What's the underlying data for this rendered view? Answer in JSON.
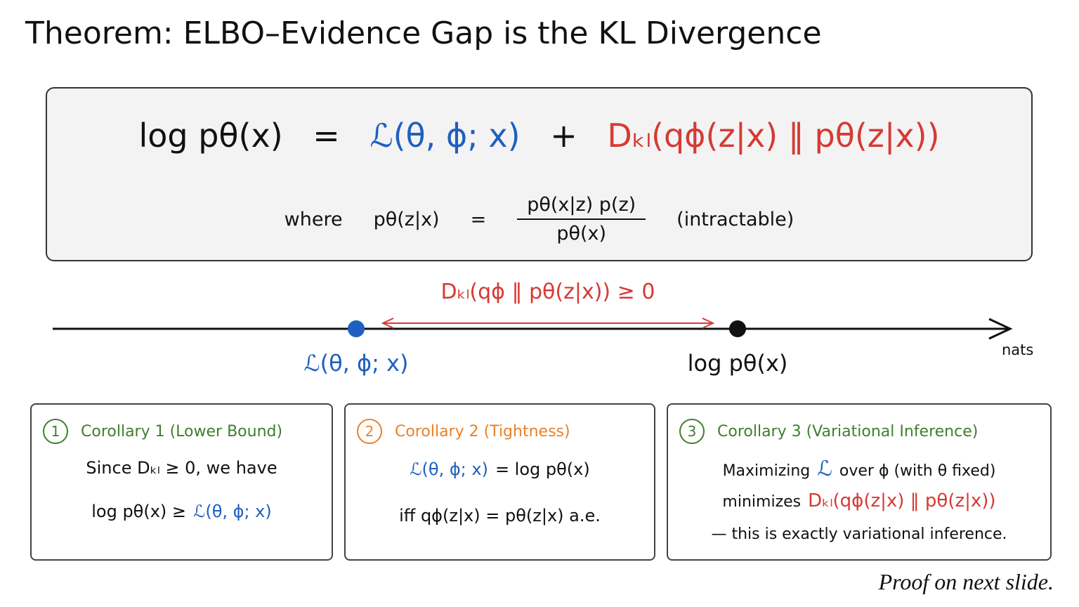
{
  "title": "Theorem: ELBO–Evidence Gap is the KL Divergence",
  "equation": {
    "lhs": "log pθ(x)",
    "equals": "=",
    "elbo": "ℒ(θ, ϕ; x)",
    "plus": "+",
    "kl": "Dₖₗ(qϕ(z|x) ‖ pθ(z|x))"
  },
  "where": {
    "label": "where",
    "lhs": "pθ(z|x)",
    "equals": "=",
    "numerator": "pθ(x|z)  p(z)",
    "denominator": "pθ(x)",
    "note": "(intractable)"
  },
  "number_line": {
    "gap_label": "Dₖₗ(qϕ ‖ pθ(z|x)) ≥ 0",
    "elbo_label": "ℒ(θ, ϕ; x)",
    "evidence_label": "log pθ(x)",
    "unit": "nats"
  },
  "corollaries": [
    {
      "number": "1",
      "title": "Corollary 1 (Lower Bound)",
      "lines": [
        [
          "Since Dₖₗ ≥ 0, we have"
        ],
        [
          "log pθ(x) ≥",
          "ℒ(θ, ϕ; x)"
        ]
      ]
    },
    {
      "number": "2",
      "title": "Corollary 2 (Tightness)",
      "lines": [
        [
          "ℒ(θ, ϕ; x)",
          "=  log pθ(x)"
        ],
        [
          "iff  qϕ(z|x) = pθ(z|x)  a.e."
        ]
      ]
    },
    {
      "number": "3",
      "title": "Corollary 3 (Variational Inference)",
      "lines": [
        [
          "Maximizing",
          "ℒ",
          "over ϕ (with θ fixed)"
        ],
        [
          "minimizes",
          "Dₖₗ(qϕ(z|x) ‖ pθ(z|x))"
        ],
        [
          "— this is exactly variational inference."
        ]
      ]
    }
  ],
  "footer": "Proof on next slide."
}
